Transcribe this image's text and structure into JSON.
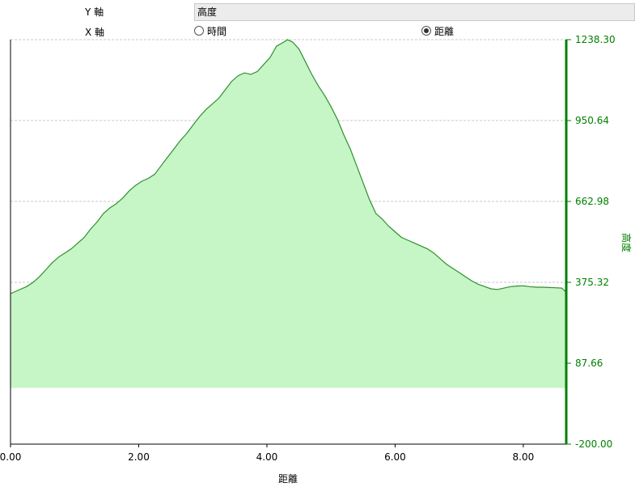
{
  "controls": {
    "y_axis_label": "Y 軸",
    "y_axis_value": "高度",
    "x_axis_label": "X 軸",
    "x_options": [
      {
        "label": "時間",
        "selected": false
      },
      {
        "label": "距離",
        "selected": true
      }
    ]
  },
  "colors": {
    "line": "#2f8f2f",
    "fill": "#c6f5c6",
    "axis_right": "#008000",
    "grid": "#c8c8c8"
  },
  "chart_data": {
    "type": "area",
    "xlabel": "距離",
    "ylabel": "高度",
    "xlim": [
      0,
      8.67
    ],
    "ylim": [
      -200,
      1238.3
    ],
    "fill_base": 0,
    "x_ticks": [
      "0.00",
      "2.00",
      "4.00",
      "6.00",
      "8.00"
    ],
    "y_ticks": [
      "-200.00",
      "87.66",
      "375.32",
      "662.98",
      "950.64",
      "1238.30"
    ],
    "grid": true,
    "legend": "none",
    "x": [
      0,
      0.1,
      0.25,
      0.35,
      0.45,
      0.55,
      0.65,
      0.75,
      0.85,
      0.95,
      1.05,
      1.15,
      1.25,
      1.35,
      1.45,
      1.55,
      1.65,
      1.75,
      1.85,
      1.95,
      2.05,
      2.15,
      2.25,
      2.35,
      2.45,
      2.55,
      2.65,
      2.75,
      2.85,
      2.95,
      3.05,
      3.15,
      3.25,
      3.35,
      3.45,
      3.55,
      3.65,
      3.75,
      3.85,
      3.95,
      4.05,
      4.15,
      4.25,
      4.32,
      4.4,
      4.5,
      4.6,
      4.7,
      4.8,
      4.9,
      5.0,
      5.1,
      5.2,
      5.3,
      5.4,
      5.5,
      5.6,
      5.7,
      5.8,
      5.9,
      6.0,
      6.1,
      6.2,
      6.3,
      6.4,
      6.5,
      6.6,
      6.7,
      6.8,
      6.9,
      7.0,
      7.1,
      7.2,
      7.3,
      7.4,
      7.5,
      7.6,
      7.7,
      7.8,
      7.9,
      8.0,
      8.1,
      8.2,
      8.3,
      8.4,
      8.5,
      8.6,
      8.67
    ],
    "y": [
      335,
      345,
      360,
      375,
      395,
      420,
      445,
      465,
      480,
      495,
      515,
      535,
      565,
      590,
      620,
      640,
      655,
      675,
      700,
      720,
      735,
      745,
      760,
      790,
      820,
      850,
      880,
      905,
      935,
      965,
      990,
      1010,
      1030,
      1060,
      1090,
      1110,
      1120,
      1115,
      1125,
      1150,
      1175,
      1215,
      1228,
      1238,
      1230,
      1205,
      1160,
      1115,
      1075,
      1040,
      1000,
      955,
      900,
      850,
      790,
      730,
      670,
      620,
      600,
      575,
      555,
      535,
      525,
      515,
      505,
      495,
      480,
      460,
      440,
      425,
      410,
      395,
      380,
      368,
      360,
      352,
      350,
      355,
      360,
      362,
      363,
      360,
      358,
      358,
      357,
      356,
      355,
      340
    ]
  }
}
